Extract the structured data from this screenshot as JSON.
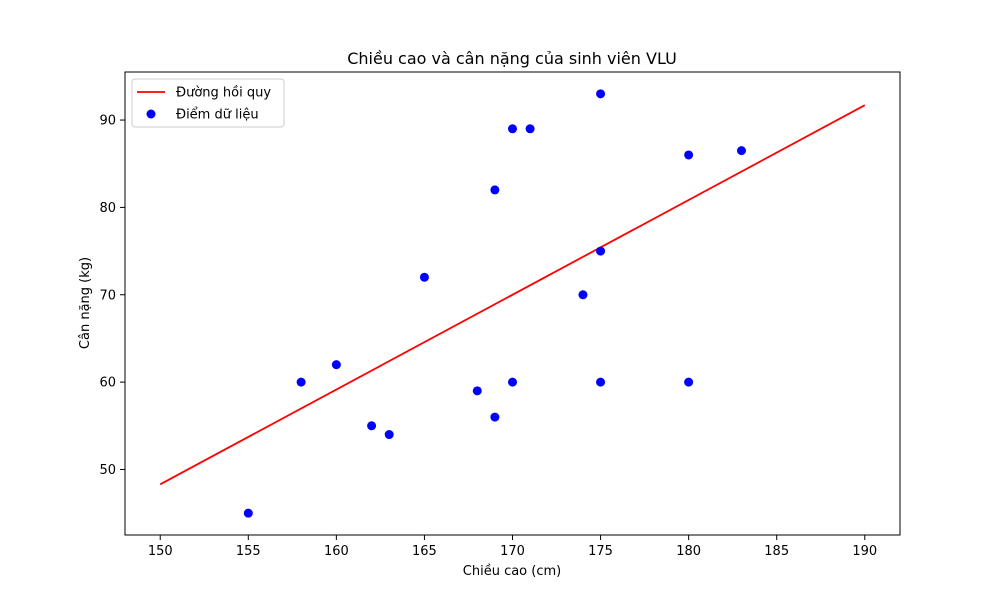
{
  "chart_data": {
    "type": "scatter",
    "title": "Chiều cao và cân nặng của sinh viên VLU",
    "xlabel": "Chiều cao (cm)",
    "ylabel": "Cân nặng (kg)",
    "xlim": [
      148,
      192
    ],
    "ylim": [
      42.5,
      95.5
    ],
    "xticks": [
      150,
      155,
      160,
      165,
      170,
      175,
      180,
      185,
      190
    ],
    "yticks": [
      50,
      60,
      70,
      80,
      90
    ],
    "grid": false,
    "legend_position": "top-left",
    "series": [
      {
        "name": "Đường hồi quy",
        "kind": "line",
        "color": "#ff0000",
        "x": [
          150,
          190
        ],
        "y": [
          48.3,
          91.7
        ]
      },
      {
        "name": "Điểm dữ liệu",
        "kind": "scatter",
        "color": "#0000ff",
        "x": [
          155,
          158,
          160,
          162,
          163,
          165,
          168,
          169,
          169,
          170,
          170,
          171,
          174,
          175,
          175,
          175,
          180,
          180,
          183
        ],
        "y": [
          45,
          60,
          62,
          55,
          54,
          72,
          59,
          56,
          82,
          60,
          89,
          89,
          70,
          93,
          75,
          60,
          86,
          60,
          86.5
        ]
      }
    ]
  }
}
